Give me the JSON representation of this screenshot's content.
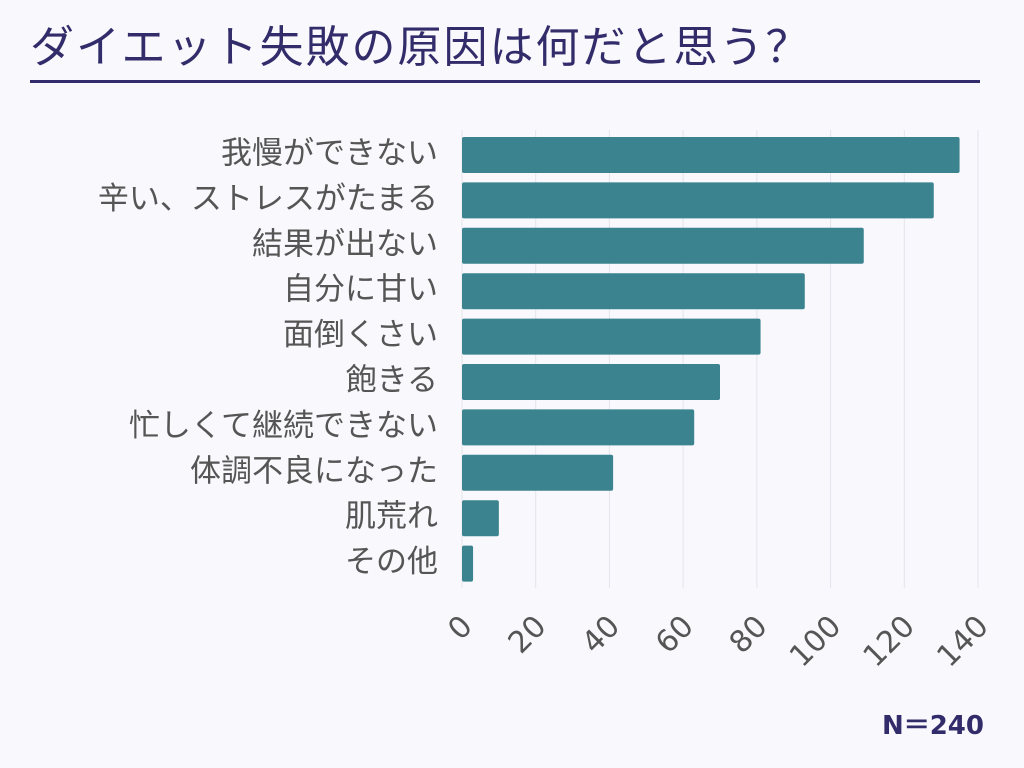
{
  "title": "ダイエット失敗の原因は何だと思う？",
  "note": "N＝240",
  "colors": {
    "bar": "#3a838f",
    "title": "#332c6a",
    "label": "#555555",
    "grid": "#e4e4ec"
  },
  "chart_data": {
    "type": "bar",
    "orientation": "horizontal",
    "categories": [
      "我慢ができない",
      "辛い、ストレスがたまる",
      "結果が出ない",
      "自分に甘い",
      "面倒くさい",
      "飽きる",
      "忙しくて継続できない",
      "体調不良になった",
      "肌荒れ",
      "その他"
    ],
    "values": [
      135,
      128,
      109,
      93,
      81,
      70,
      63,
      41,
      10,
      3
    ],
    "xlim": [
      0,
      140
    ],
    "xticks": [
      "0",
      "20",
      "40",
      "60",
      "80",
      "100",
      "120",
      "140"
    ],
    "xtick_values": [
      0,
      20,
      40,
      60,
      80,
      100,
      120,
      140
    ],
    "grid": "vertical",
    "legend": "none"
  }
}
